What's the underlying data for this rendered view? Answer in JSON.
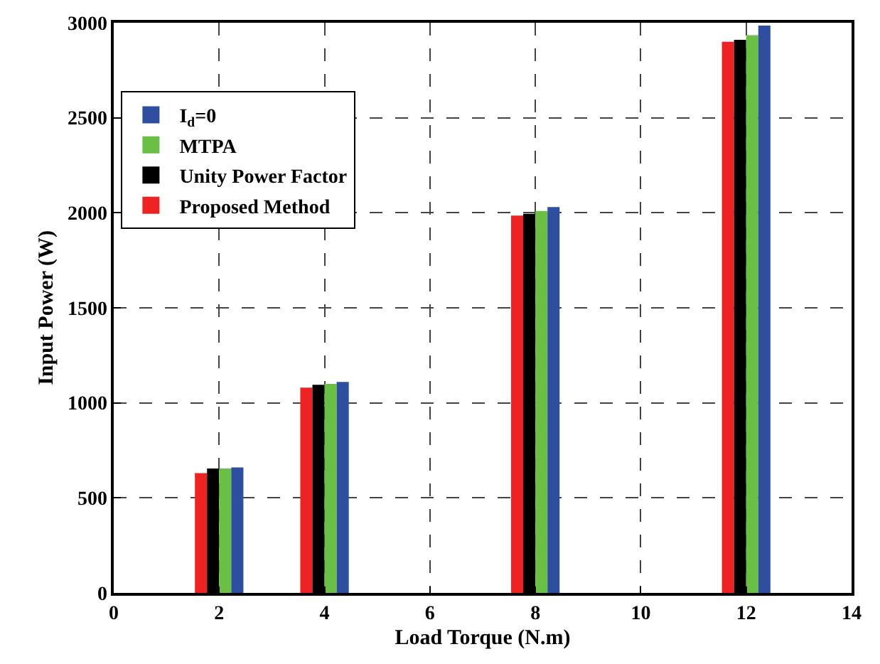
{
  "chart_data": {
    "type": "bar",
    "xlabel": "Load Torque (N.m)",
    "ylabel": "Input Power (W)",
    "x": [
      2,
      4,
      8,
      12
    ],
    "series": [
      {
        "name": "Proposed Method",
        "color": "#ee2222",
        "values": [
          630,
          1080,
          1985,
          2900
        ]
      },
      {
        "name": "Unity Power Factor",
        "color": "#000000",
        "values": [
          655,
          1095,
          1995,
          2910
        ]
      },
      {
        "name": "MTPA",
        "color": "#6abf45",
        "values": [
          655,
          1100,
          2010,
          2935
        ]
      },
      {
        "name": "I$_{d}$=0",
        "color": "#2e4fa0",
        "values": [
          660,
          1110,
          2030,
          2985
        ]
      }
    ],
    "xlim": [
      0,
      14
    ],
    "xticks": [
      0,
      2,
      4,
      6,
      8,
      10,
      12,
      14
    ],
    "ylim": [
      0,
      3000
    ],
    "yticks": [
      0,
      500,
      1000,
      1500,
      2000,
      2500,
      3000
    ],
    "grid": true,
    "legend": "top left"
  }
}
